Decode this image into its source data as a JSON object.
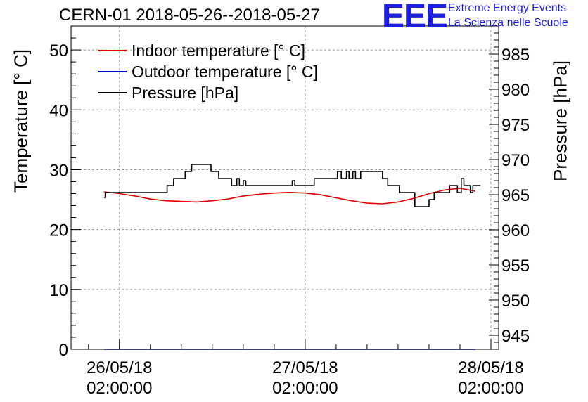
{
  "title": "CERN-01 2018-05-26--2018-05-27",
  "logo": {
    "mark": "EEE",
    "line1": "Extreme Energy Events",
    "line2": "La Scienza nelle Scuole",
    "color": "#1f1fe0"
  },
  "chart_data": {
    "type": "line",
    "title": "CERN-01 2018-05-26--2018-05-27",
    "ylabel": "Temperature [° C]",
    "y2label": "Pressure [hPa]",
    "ylim": [
      0,
      54
    ],
    "y2lim": [
      943,
      989
    ],
    "xlim": [
      "2018-05-25 19:45",
      "2018-05-28 03:00"
    ],
    "grid": true,
    "legend": "top-left",
    "yticks": [
      0,
      10,
      20,
      30,
      40,
      50
    ],
    "y2ticks": [
      945,
      950,
      955,
      960,
      965,
      970,
      975,
      980,
      985
    ],
    "xticks": [
      {
        "x": "2018-05-26 02:00",
        "line1": "26/05/18",
        "line2": "02:00:00"
      },
      {
        "x": "2018-05-27 02:00",
        "line1": "27/05/18",
        "line2": "02:00:00"
      },
      {
        "x": "2018-05-28 02:00",
        "line1": "28/05/18",
        "line2": "02:00:00"
      }
    ],
    "series": [
      {
        "name": "Indoor temperature [° C]",
        "axis": "left",
        "color": "#e00000",
        "x": [
          "2018-05-26 00:00",
          "2018-05-26 02:00",
          "2018-05-26 04:00",
          "2018-05-26 06:00",
          "2018-05-26 08:00",
          "2018-05-26 10:00",
          "2018-05-26 12:00",
          "2018-05-26 14:00",
          "2018-05-26 16:00",
          "2018-05-26 18:00",
          "2018-05-26 20:00",
          "2018-05-26 22:00",
          "2018-05-27 00:00",
          "2018-05-27 02:00",
          "2018-05-27 04:00",
          "2018-05-27 06:00",
          "2018-05-27 08:00",
          "2018-05-27 10:00",
          "2018-05-27 12:00",
          "2018-05-27 14:00",
          "2018-05-27 16:00",
          "2018-05-27 18:00",
          "2018-05-27 20:00",
          "2018-05-27 22:00",
          "2018-05-28 00:00"
        ],
        "values": [
          26.3,
          26.0,
          25.6,
          25.1,
          24.8,
          24.7,
          24.6,
          24.8,
          25.1,
          25.6,
          25.9,
          26.1,
          26.2,
          26.1,
          25.8,
          25.3,
          24.8,
          24.4,
          24.3,
          24.6,
          25.2,
          26.0,
          26.6,
          26.9,
          26.4
        ]
      },
      {
        "name": "Outdoor temperature [° C]",
        "axis": "left",
        "color": "#0000e0",
        "x": [
          "2018-05-26 00:00",
          "2018-05-28 00:00"
        ],
        "values": [
          0,
          0
        ]
      },
      {
        "name": "Pressure [hPa]",
        "axis": "right",
        "color": "#000000",
        "x": [
          "2018-05-26 00:00",
          "2018-05-26 00:10",
          "2018-05-26 04:30",
          "2018-05-26 07:20",
          "2018-05-26 08:10",
          "2018-05-26 09:00",
          "2018-05-26 10:30",
          "2018-05-26 11:20",
          "2018-05-26 12:20",
          "2018-05-26 13:50",
          "2018-05-26 14:50",
          "2018-05-26 16:30",
          "2018-05-26 17:10",
          "2018-05-26 17:30",
          "2018-05-26 18:00",
          "2018-05-26 18:20",
          "2018-05-27 00:00",
          "2018-05-27 00:20",
          "2018-05-27 00:40",
          "2018-05-27 02:30",
          "2018-05-27 03:10",
          "2018-05-27 05:40",
          "2018-05-27 06:10",
          "2018-05-27 06:40",
          "2018-05-27 07:20",
          "2018-05-27 07:40",
          "2018-05-27 08:10",
          "2018-05-27 08:30",
          "2018-05-27 09:10",
          "2018-05-27 10:00",
          "2018-05-27 12:00",
          "2018-05-27 12:40",
          "2018-05-27 14:10",
          "2018-05-27 15:00",
          "2018-05-27 16:10",
          "2018-05-27 17:30",
          "2018-05-27 18:00",
          "2018-05-27 18:40",
          "2018-05-27 20:40",
          "2018-05-27 21:40",
          "2018-05-27 22:10",
          "2018-05-27 22:30",
          "2018-05-27 22:50",
          "2018-05-27 23:20",
          "2018-05-27 23:40",
          "2018-05-28 00:00",
          "2018-05-28 00:40"
        ],
        "values": [
          964.6,
          965.3,
          965.3,
          965.3,
          966.3,
          967.3,
          968.3,
          969.3,
          969.3,
          968.3,
          967.3,
          966.3,
          967.3,
          966.3,
          967.0,
          966.3,
          966.3,
          967.0,
          966.3,
          966.3,
          967.3,
          967.3,
          968.3,
          967.3,
          968.3,
          967.3,
          968.3,
          967.3,
          968.3,
          968.3,
          967.3,
          966.3,
          965.3,
          965.3,
          963.3,
          963.3,
          964.3,
          965.3,
          966.3,
          965.3,
          967.3,
          966.3,
          966.3,
          965.3,
          966.3,
          966.3,
          966.3
        ]
      }
    ]
  }
}
